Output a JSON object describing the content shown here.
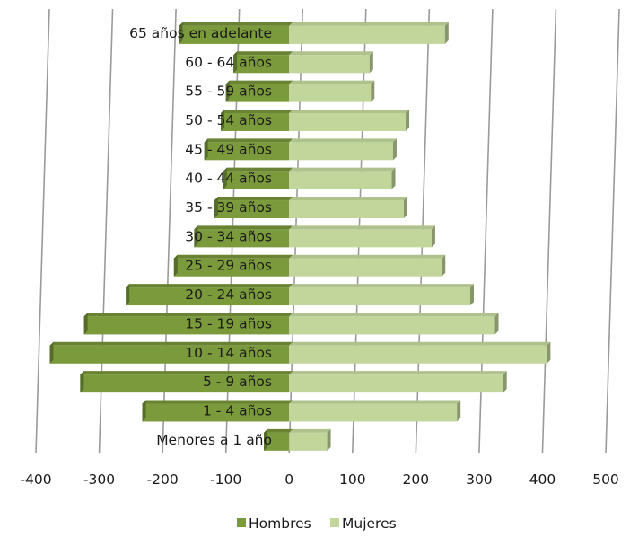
{
  "chart_data": {
    "type": "bar",
    "orientation": "horizontal",
    "style": "3d-population-pyramid",
    "categories": [
      "Menores a 1 año",
      "1 - 4 años",
      "5 - 9 años",
      "10 - 14 años",
      "15 - 19 años",
      "20 - 24 años",
      "25 - 29 años",
      "30 - 34 años",
      "35 - 39 años",
      "40 - 44 años",
      "45 - 49 años",
      "50 - 54 años",
      "55 - 59 años",
      "60 - 64 años",
      "65 años en adelante"
    ],
    "series": [
      {
        "name": "Hombres",
        "color": "#7b9a3c",
        "values": [
          -40,
          -232,
          -330,
          -378,
          -324,
          -258,
          -182,
          -150,
          -118,
          -104,
          -134,
          -108,
          -100,
          -88,
          -174
        ]
      },
      {
        "name": "Mujeres",
        "color": "#c2d69b",
        "values": [
          60,
          265,
          338,
          407,
          325,
          286,
          241,
          225,
          181,
          162,
          164,
          184,
          129,
          127,
          246
        ]
      }
    ],
    "xlim": [
      -400,
      500
    ],
    "xticks": [
      "-400",
      "-300",
      "-200",
      "-100",
      "0",
      "100",
      "200",
      "300",
      "400",
      "500"
    ],
    "xlabel": "",
    "ylabel": "",
    "title": "",
    "grid": true,
    "legend_position": "bottom"
  }
}
